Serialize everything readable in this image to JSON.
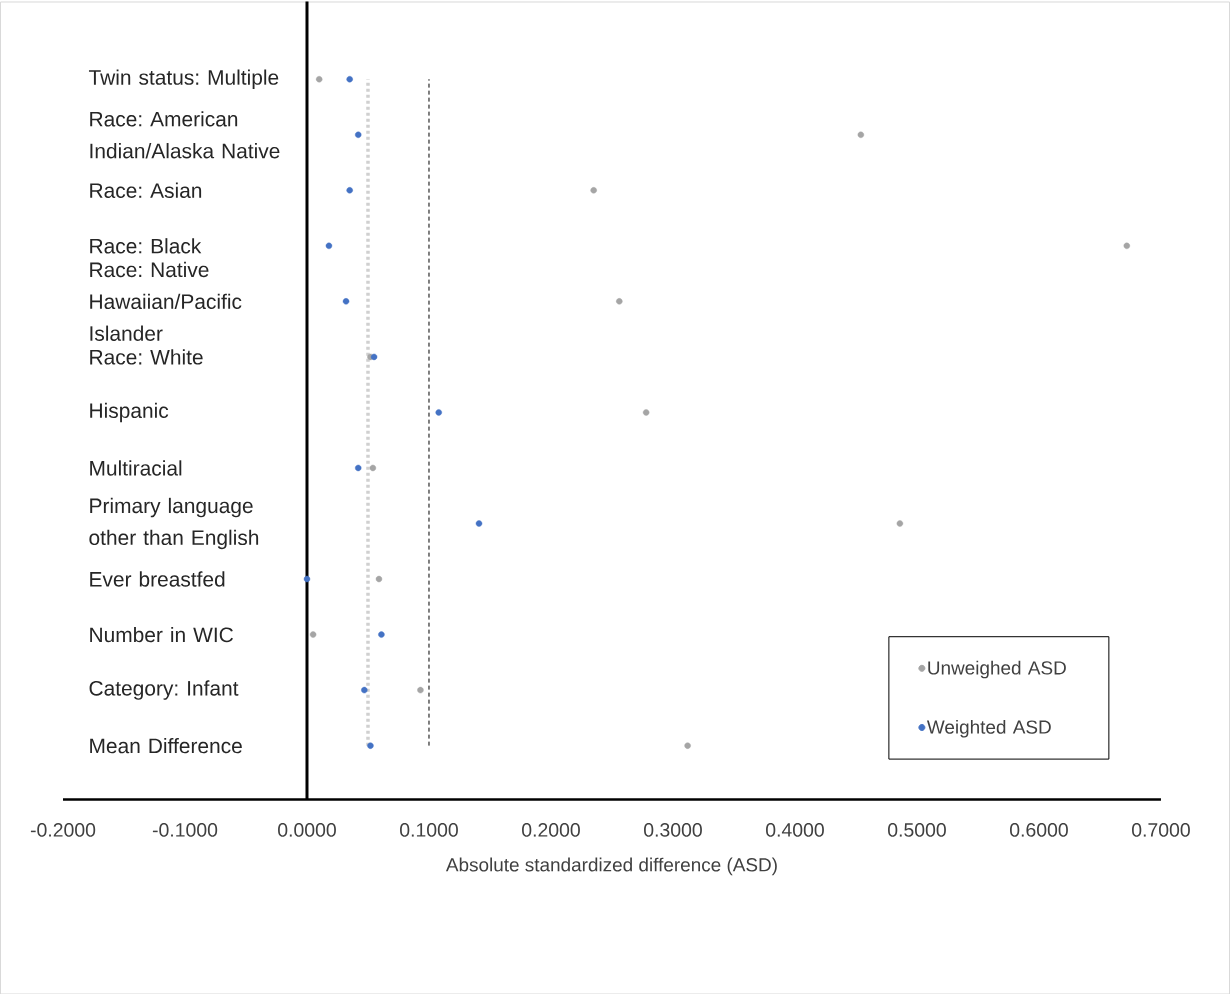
{
  "chart_data": {
    "type": "scatter",
    "orientation": "horizontal",
    "xlabel": "Absolute standardized difference (ASD)",
    "categories": [
      "Twin status: Multiple",
      "Race: American Indian/Alaska Native",
      "Race: Asian",
      "Race: Black",
      "Race: Native Hawaiian/Pacific Islander",
      "Race: White",
      "Hispanic",
      "Multiracial",
      "Primary language other than English",
      "Ever breastfed",
      "Number in WIC",
      "Category: Infant",
      "Mean Difference"
    ],
    "series": [
      {
        "name": "Unweighed ASD",
        "color": "#a5a5a5",
        "values": [
          0.01,
          0.454,
          0.235,
          0.672,
          0.256,
          0.052,
          0.278,
          0.054,
          0.486,
          0.059,
          0.005,
          0.093,
          0.312
        ]
      },
      {
        "name": "Weighted ASD",
        "color": "#4472c4",
        "values": [
          0.035,
          0.042,
          0.035,
          0.018,
          0.032,
          0.055,
          0.108,
          0.042,
          0.141,
          0.0,
          0.061,
          0.047,
          0.052
        ]
      }
    ],
    "xlim": [
      -0.2,
      0.7
    ],
    "xticks": [
      {
        "value": -0.2,
        "label": "-0.2000"
      },
      {
        "value": -0.1,
        "label": "-0.1000"
      },
      {
        "value": 0,
        "label": "0.0000"
      },
      {
        "value": 0.1,
        "label": "0.1000"
      },
      {
        "value": 0.2,
        "label": "0.2000"
      },
      {
        "value": 0.3,
        "label": "0.3000"
      },
      {
        "value": 0.4,
        "label": "0.4000"
      },
      {
        "value": 0.5,
        "label": "0.5000"
      },
      {
        "value": 0.6,
        "label": "0.6000"
      },
      {
        "value": 0.7,
        "label": "0.7000"
      }
    ],
    "ref_lines": [
      {
        "axis": "x",
        "value": 0.05,
        "color": "#d0d0d0",
        "line_style": "dotted"
      },
      {
        "axis": "x",
        "value": 0.1,
        "color": "#000000",
        "line_style": "dashed"
      }
    ],
    "legend": "bottom right",
    "marker": "circle",
    "grid": false
  }
}
